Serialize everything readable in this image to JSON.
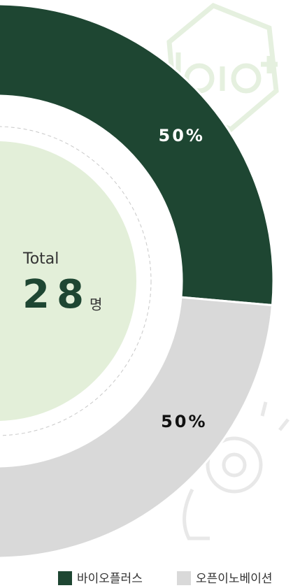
{
  "chart_data": {
    "type": "donut",
    "categories": [
      "바이오플러스",
      "오픈이노베이션"
    ],
    "values": [
      50,
      50
    ],
    "value_labels": [
      "50%",
      "50%"
    ],
    "colors": [
      "#1e4632",
      "#d9d9d9"
    ],
    "label_colors": [
      "#ffffff",
      "#111111"
    ],
    "center_label": "Total",
    "center_value": 28,
    "center_unit": "명",
    "legend": "bottom"
  }
}
